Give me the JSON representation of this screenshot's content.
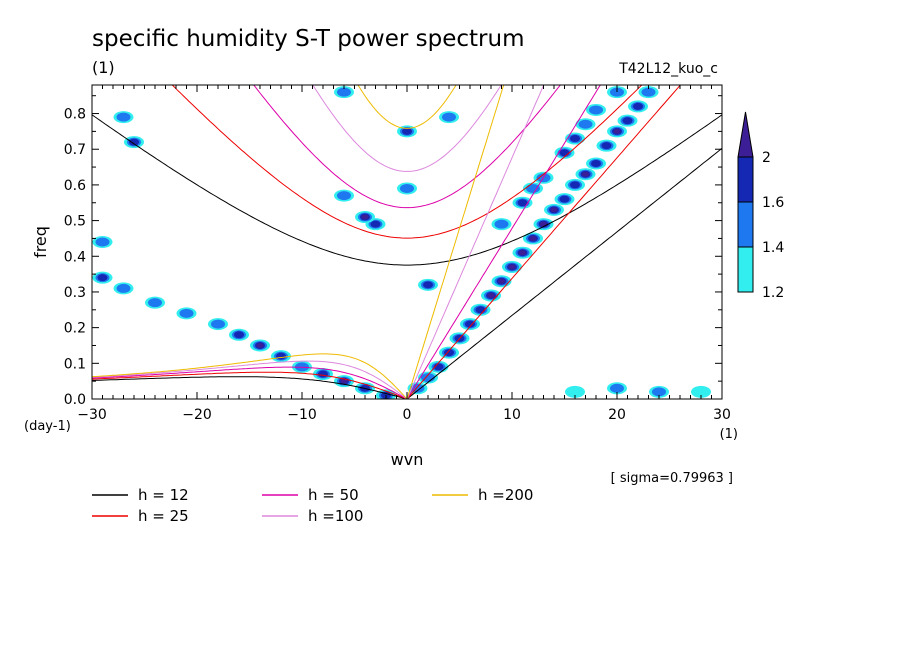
{
  "chart_data": {
    "type": "heatmap",
    "title": "specific humidity S-T power spectrum",
    "subtitle": "(1)",
    "run_label": "T42L12_kuo_c",
    "xlabel": "wvn",
    "x_unit": "(1)",
    "ylabel": "freq",
    "y_unit": "(day-1)",
    "sigma_note": "[ sigma=0.79963 ]",
    "xlim": [
      -30,
      30
    ],
    "ylim": [
      0,
      0.88
    ],
    "x_ticks": [
      -30,
      -20,
      -10,
      0,
      10,
      20,
      30
    ],
    "y_ticks": [
      0.0,
      0.1,
      0.2,
      0.3,
      0.4,
      0.5,
      0.6,
      0.7,
      0.8
    ],
    "colorbar": {
      "levels": [
        1.2,
        1.4,
        1.6,
        2
      ],
      "colors": [
        "#33eeee",
        "#1e78f0",
        "#1428b4",
        "#3c1e96"
      ]
    },
    "shaded_regions": [
      {
        "x": 1,
        "y": 0.03,
        "level": 1.4
      },
      {
        "x": 2,
        "y": 0.06,
        "level": 1.4
      },
      {
        "x": 3,
        "y": 0.09,
        "level": 1.6
      },
      {
        "x": 4,
        "y": 0.13,
        "level": 1.6
      },
      {
        "x": 5,
        "y": 0.17,
        "level": 1.6
      },
      {
        "x": 6,
        "y": 0.21,
        "level": 1.6
      },
      {
        "x": 7,
        "y": 0.25,
        "level": 1.6
      },
      {
        "x": 8,
        "y": 0.29,
        "level": 2
      },
      {
        "x": 9,
        "y": 0.33,
        "level": 2
      },
      {
        "x": 10,
        "y": 0.37,
        "level": 2
      },
      {
        "x": 11,
        "y": 0.41,
        "level": 2
      },
      {
        "x": 12,
        "y": 0.45,
        "level": 2
      },
      {
        "x": 13,
        "y": 0.49,
        "level": 2
      },
      {
        "x": 14,
        "y": 0.53,
        "level": 2
      },
      {
        "x": 15,
        "y": 0.56,
        "level": 1.6
      },
      {
        "x": 16,
        "y": 0.6,
        "level": 1.6
      },
      {
        "x": 17,
        "y": 0.63,
        "level": 2
      },
      {
        "x": 18,
        "y": 0.66,
        "level": 1.6
      },
      {
        "x": 19,
        "y": 0.71,
        "level": 1.6
      },
      {
        "x": 20,
        "y": 0.75,
        "level": 2
      },
      {
        "x": 21,
        "y": 0.78,
        "level": 1.6
      },
      {
        "x": 22,
        "y": 0.82,
        "level": 1.6
      },
      {
        "x": 23,
        "y": 0.86,
        "level": 1.4
      },
      {
        "x": 9,
        "y": 0.49,
        "level": 1.4
      },
      {
        "x": 11,
        "y": 0.55,
        "level": 1.6
      },
      {
        "x": 12,
        "y": 0.59,
        "level": 1.4
      },
      {
        "x": 13,
        "y": 0.62,
        "level": 1.4
      },
      {
        "x": 15,
        "y": 0.69,
        "level": 1.6
      },
      {
        "x": 16,
        "y": 0.73,
        "level": 1.6
      },
      {
        "x": 17,
        "y": 0.77,
        "level": 1.4
      },
      {
        "x": 18,
        "y": 0.81,
        "level": 1.4
      },
      {
        "x": 20,
        "y": 0.86,
        "level": 1.4
      },
      {
        "x": -2,
        "y": 0.01,
        "level": 1.6
      },
      {
        "x": -4,
        "y": 0.03,
        "level": 1.6
      },
      {
        "x": -6,
        "y": 0.05,
        "level": 2
      },
      {
        "x": -8,
        "y": 0.07,
        "level": 1.6
      },
      {
        "x": -10,
        "y": 0.09,
        "level": 1.4
      },
      {
        "x": -12,
        "y": 0.12,
        "level": 1.6
      },
      {
        "x": -14,
        "y": 0.15,
        "level": 2
      },
      {
        "x": -16,
        "y": 0.18,
        "level": 1.6
      },
      {
        "x": -18,
        "y": 0.21,
        "level": 1.4
      },
      {
        "x": -21,
        "y": 0.24,
        "level": 1.4
      },
      {
        "x": -24,
        "y": 0.27,
        "level": 1.4
      },
      {
        "x": -27,
        "y": 0.31,
        "level": 1.4
      },
      {
        "x": -29,
        "y": 0.34,
        "level": 1.6
      },
      {
        "x": -29,
        "y": 0.44,
        "level": 1.4
      },
      {
        "x": -3,
        "y": 0.49,
        "level": 1.6
      },
      {
        "x": -4,
        "y": 0.51,
        "level": 2
      },
      {
        "x": 0,
        "y": 0.59,
        "level": 1.4
      },
      {
        "x": 0,
        "y": 0.75,
        "level": 1.6
      },
      {
        "x": 4,
        "y": 0.79,
        "level": 1.4
      },
      {
        "x": -6,
        "y": 0.57,
        "level": 1.4
      },
      {
        "x": 2,
        "y": 0.32,
        "level": 1.6
      },
      {
        "x": -26,
        "y": 0.72,
        "level": 1.6
      },
      {
        "x": -27,
        "y": 0.79,
        "level": 1.4
      },
      {
        "x": -6,
        "y": 0.86,
        "level": 1.4
      },
      {
        "x": 20,
        "y": 0.03,
        "level": 1.4
      },
      {
        "x": 24,
        "y": 0.02,
        "level": 1.4
      },
      {
        "x": 16,
        "y": 0.02,
        "level": 1.2
      },
      {
        "x": 28,
        "y": 0.02,
        "level": 1.2
      }
    ],
    "series": [
      {
        "name": "h = 12",
        "color": "#000000",
        "h": 12
      },
      {
        "name": "h = 25",
        "color": "#ee0000",
        "h": 25
      },
      {
        "name": "h = 50",
        "color": "#dd00aa",
        "h": 50
      },
      {
        "name": "h =100",
        "color": "#dd88dd",
        "h": 100
      },
      {
        "name": "h =200",
        "color": "#eebb00",
        "h": 200
      }
    ]
  }
}
